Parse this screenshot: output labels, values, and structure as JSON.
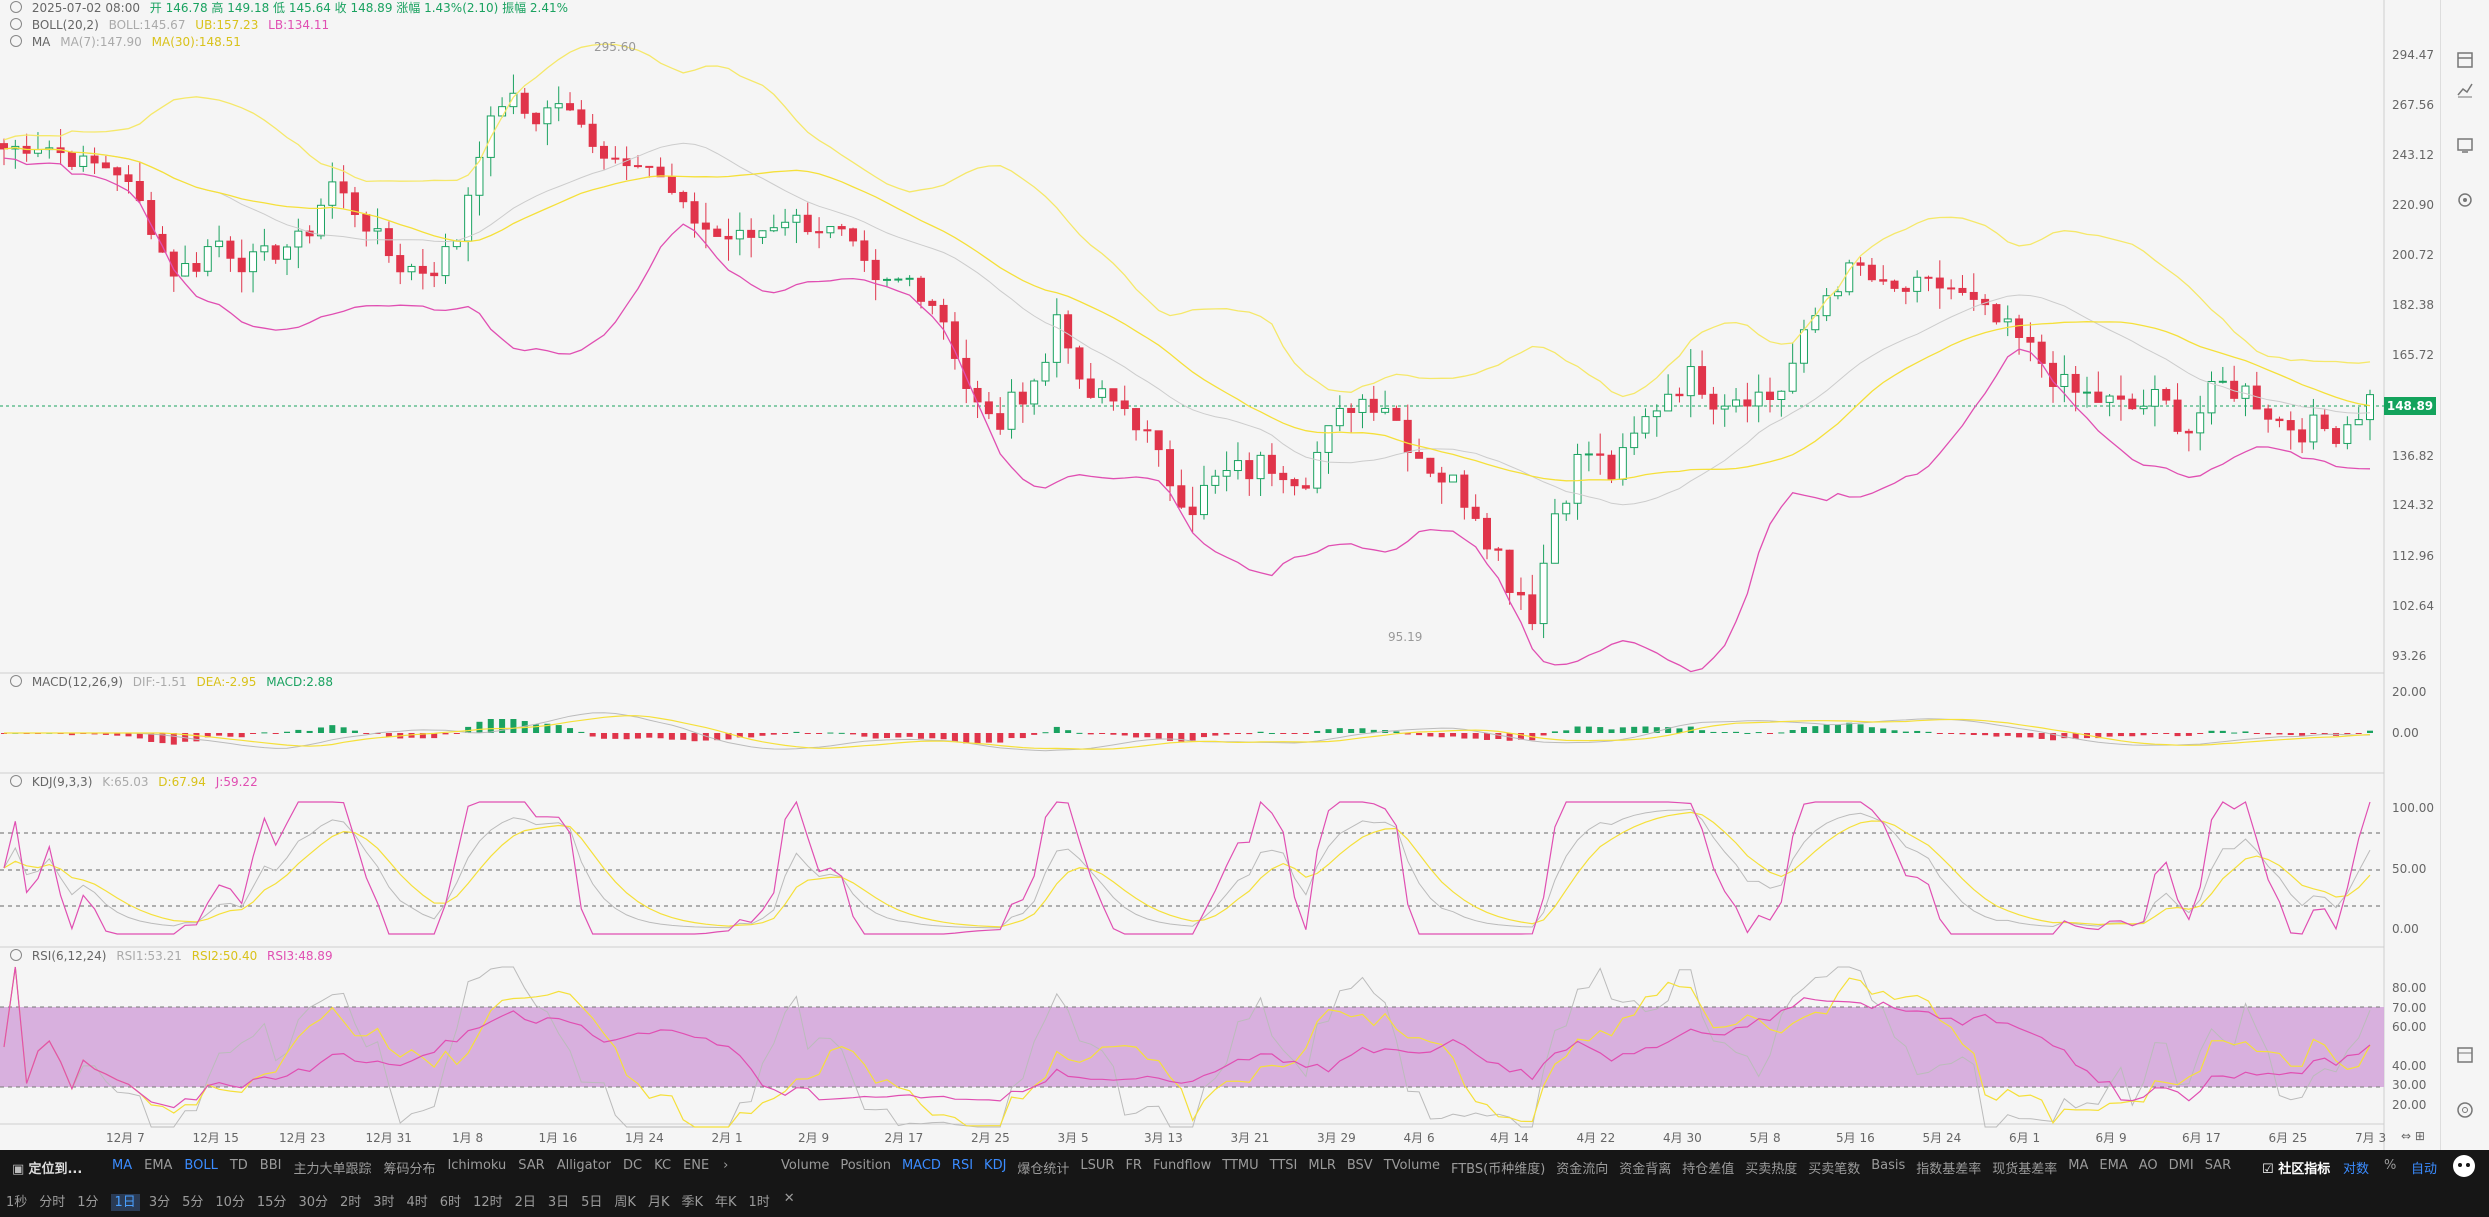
{
  "header": {
    "date": "2025-07-02 08:00",
    "ohlc_label": "开 146.78  高 149.18  低 145.64  收 148.89  涨幅 1.43%(2.10)  振幅 2.41%",
    "boll": {
      "name": "BOLL(20,2)",
      "boll": "BOLL:145.67",
      "ub": "UB:157.23",
      "lb": "LB:134.11"
    },
    "ma": {
      "name": "MA",
      "ma7": "MA(7):147.90",
      "ma30": "MA(30):148.51"
    }
  },
  "price_axis": [
    "294.47",
    "267.56",
    "243.12",
    "220.90",
    "200.72",
    "182.38",
    "165.72",
    "148.89",
    "136.82",
    "124.32",
    "112.96",
    "102.64",
    "93.26"
  ],
  "current_price": "148.89",
  "annotations": {
    "high": "295.60",
    "low": "95.19"
  },
  "macd": {
    "name": "MACD(12,26,9)",
    "dif": "DIF:-1.51",
    "dea": "DEA:-2.95",
    "macd": "MACD:2.88",
    "axis": [
      "20.00",
      "0.00"
    ]
  },
  "kdj": {
    "name": "KDJ(9,3,3)",
    "k": "K:65.03",
    "d": "D:67.94",
    "j": "J:59.22",
    "axis": [
      "100.00",
      "50.00",
      "0.00"
    ]
  },
  "rsi": {
    "name": "RSI(6,12,24)",
    "rsi1": "RSI1:53.21",
    "rsi2": "RSI2:50.40",
    "rsi3": "RSI3:48.89",
    "axis": [
      "80.00",
      "70.00",
      "60.00",
      "40.00",
      "30.00",
      "20.00"
    ]
  },
  "x_labels": [
    "12月 7",
    "12月 15",
    "12月 23",
    "12月 31",
    "1月 8",
    "1月 16",
    "1月 24",
    "2月 1",
    "2月 9",
    "2月 17",
    "2月 25",
    "3月 5",
    "3月 13",
    "3月 21",
    "3月 29",
    "4月 6",
    "4月 14",
    "4月 22",
    "4月 30",
    "5月 8",
    "5月 16",
    "5月 24",
    "6月 1",
    "6月 9",
    "6月 17",
    "6月 25",
    "7月 3"
  ],
  "indicator_bar": {
    "locate": "定位到...",
    "main_indicators": [
      "MA",
      "EMA",
      "BOLL",
      "TD",
      "BBI",
      "主力大单跟踪",
      "筹码分布",
      "Ichimoku",
      "SAR",
      "Alligator",
      "DC",
      "KC",
      "ENE"
    ],
    "sub_indicators": [
      "Volume",
      "Position",
      "MACD",
      "RSI",
      "KDJ",
      "爆仓统计",
      "LSUR",
      "FR",
      "Fundflow",
      "TTMU",
      "TTSI",
      "MLR",
      "BSV",
      "TVolume",
      "FTBS(币种维度)",
      "资金流向",
      "资金背离",
      "持仓差值",
      "买卖热度",
      "买卖笔数",
      "Basis",
      "指数基差率",
      "现货基差率",
      "MA",
      "EMA",
      "AO",
      "DMI",
      "SAR"
    ],
    "community": "社区指标",
    "log": "对数",
    "percent": "%",
    "auto": "自动"
  },
  "timeframes": [
    "1秒",
    "分时",
    "1分",
    "1日",
    "3分",
    "5分",
    "10分",
    "15分",
    "30分",
    "2时",
    "3时",
    "4时",
    "6时",
    "12时",
    "2日",
    "3日",
    "5日",
    "周K",
    "月K",
    "季K",
    "年K",
    "1时"
  ],
  "active_timeframe": "1日",
  "colors": {
    "up": "#1aa260",
    "down": "#e0344a",
    "ma7": "#bbbbbb",
    "ma30": "#f5e03a",
    "boll_mid": "#cccccc",
    "boll_ub": "#f5e86a",
    "boll_lb": "#e04fb2",
    "rsi_band": "#d5a8dc"
  },
  "right_icons": [
    "layout-icon",
    "chart-type-icon",
    "indicator-icon",
    "settings-icon",
    "window-icon",
    "help-icon"
  ]
}
